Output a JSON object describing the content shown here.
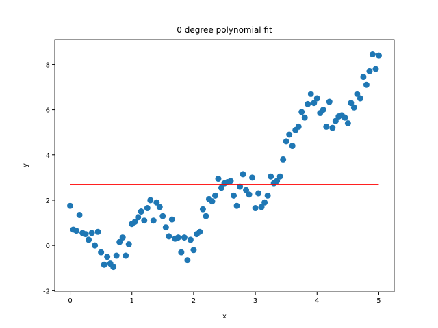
{
  "chart_data": {
    "type": "scatter",
    "title": "0 degree polynomial fit",
    "x_label": "x",
    "y_label": "y",
    "xlim": [
      -0.25,
      5.25
    ],
    "ylim": [
      -2.05,
      9.1
    ],
    "xticks": [
      0,
      1,
      2,
      3,
      4,
      5
    ],
    "yticks": [
      -2,
      0,
      2,
      4,
      6,
      8
    ],
    "series": [
      {
        "color": "#1f77b4",
        "x": [
          0,
          0.05,
          0.1,
          0.15,
          0.2,
          0.25,
          0.3,
          0.35,
          0.4,
          0.45,
          0.5,
          0.55,
          0.6,
          0.65,
          0.7,
          0.75,
          0.8,
          0.85,
          0.9,
          0.95,
          1.0,
          1.05,
          1.1,
          1.15,
          1.2,
          1.25,
          1.3,
          1.35,
          1.4,
          1.45,
          1.5,
          1.55,
          1.6,
          1.65,
          1.7,
          1.75,
          1.8,
          1.85,
          1.9,
          1.95,
          2.0,
          2.05,
          2.1,
          2.15,
          2.2,
          2.25,
          2.3,
          2.35,
          2.4,
          2.45,
          2.5,
          2.55,
          2.6,
          2.65,
          2.7,
          2.75,
          2.8,
          2.85,
          2.9,
          2.95,
          3.0,
          3.05,
          3.1,
          3.15,
          3.2,
          3.25,
          3.3,
          3.35,
          3.4,
          3.45,
          3.5,
          3.55,
          3.6,
          3.65,
          3.7,
          3.75,
          3.8,
          3.85,
          3.9,
          3.95,
          4.0,
          4.05,
          4.1,
          4.15,
          4.2,
          4.25,
          4.3,
          4.35,
          4.4,
          4.45,
          4.5,
          4.55,
          4.6,
          4.65,
          4.7,
          4.75,
          4.8,
          4.85,
          4.9,
          4.95,
          5.0
        ],
        "values": [
          1.75,
          0.7,
          0.65,
          1.35,
          0.55,
          0.5,
          0.25,
          0.55,
          0.0,
          0.6,
          -0.3,
          -0.85,
          -0.5,
          -0.8,
          -0.95,
          -0.45,
          0.15,
          0.35,
          -0.45,
          0.05,
          0.95,
          1.05,
          1.25,
          1.5,
          1.1,
          1.65,
          2.0,
          1.1,
          1.9,
          1.7,
          1.3,
          0.8,
          0.4,
          1.15,
          0.3,
          0.35,
          -0.3,
          0.35,
          -0.65,
          0.25,
          -0.2,
          0.5,
          0.6,
          1.6,
          1.3,
          2.05,
          1.95,
          2.2,
          2.95,
          2.55,
          2.75,
          2.8,
          2.85,
          2.2,
          1.75,
          2.6,
          3.15,
          2.45,
          2.25,
          3.0,
          1.65,
          2.3,
          1.7,
          1.9,
          2.2,
          3.05,
          2.75,
          2.85,
          3.05,
          3.8,
          4.6,
          4.9,
          4.4,
          5.1,
          5.25,
          5.9,
          5.65,
          6.25,
          6.7,
          6.3,
          6.5,
          5.85,
          6.0,
          5.25,
          6.35,
          5.2,
          5.5,
          5.7,
          5.75,
          5.65,
          5.4,
          6.3,
          6.1,
          6.7,
          6.5,
          7.45,
          7.1,
          7.7,
          8.45,
          7.8,
          8.4
        ]
      },
      {
        "color": "#ff0000",
        "line": true,
        "x": [
          0,
          5
        ],
        "values": [
          2.69,
          2.69
        ]
      }
    ]
  }
}
